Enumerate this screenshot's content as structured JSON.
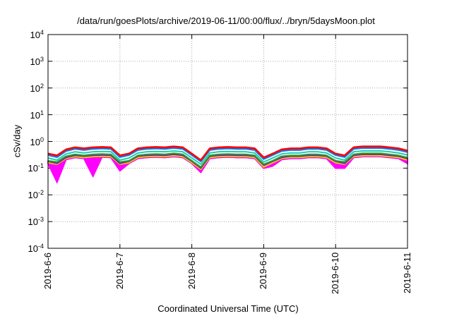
{
  "chart_data": {
    "type": "line",
    "title": "/data/run/goesPlots/archive/2019-06-11/00:00/flux/../bryn/5daysMoon.plot",
    "xlabel": "Coordinated Universal Time (UTC)",
    "ylabel": "cSv/day",
    "yscale": "log",
    "ylim": [
      0.0001,
      10000
    ],
    "xlim": [
      0,
      5
    ],
    "x_unit": "days since 2019-6-6 00:00",
    "grid": true,
    "y_ticks": [
      {
        "value": 10000,
        "base": "10",
        "exp": "4"
      },
      {
        "value": 1000,
        "base": "10",
        "exp": "3"
      },
      {
        "value": 100,
        "base": "10",
        "exp": "2"
      },
      {
        "value": 10,
        "base": "10",
        "exp": "1"
      },
      {
        "value": 1,
        "base": "10",
        "exp": "0"
      },
      {
        "value": 0.1,
        "base": "10",
        "exp": "-1"
      },
      {
        "value": 0.01,
        "base": "10",
        "exp": "-2"
      },
      {
        "value": 0.001,
        "base": "10",
        "exp": "-3"
      },
      {
        "value": 0.0001,
        "base": "10",
        "exp": "-4"
      }
    ],
    "x_ticks": [
      {
        "value": 0,
        "label": "2019-6-6"
      },
      {
        "value": 1,
        "label": "2019-6-7"
      },
      {
        "value": 2,
        "label": "2019-6-8"
      },
      {
        "value": 3,
        "label": "2019-6-9"
      },
      {
        "value": 4,
        "label": "2019-6-10"
      },
      {
        "value": 5,
        "label": "2019-6-11"
      }
    ],
    "x_step": 0.125,
    "series": [
      {
        "name": "red",
        "color": "#ff0000",
        "values": [
          0.35,
          0.3,
          0.5,
          0.6,
          0.55,
          0.6,
          0.62,
          0.6,
          0.3,
          0.35,
          0.55,
          0.6,
          0.62,
          0.6,
          0.65,
          0.6,
          0.35,
          0.2,
          0.55,
          0.6,
          0.62,
          0.6,
          0.6,
          0.55,
          0.25,
          0.35,
          0.5,
          0.55,
          0.55,
          0.6,
          0.6,
          0.55,
          0.35,
          0.3,
          0.6,
          0.65,
          0.65,
          0.65,
          0.6,
          0.55,
          0.45
        ]
      },
      {
        "name": "blue",
        "color": "#1f6fe0",
        "values": [
          0.31,
          0.26,
          0.44,
          0.53,
          0.48,
          0.53,
          0.55,
          0.53,
          0.26,
          0.31,
          0.48,
          0.53,
          0.55,
          0.53,
          0.57,
          0.53,
          0.31,
          0.18,
          0.48,
          0.53,
          0.55,
          0.53,
          0.53,
          0.48,
          0.22,
          0.31,
          0.44,
          0.48,
          0.48,
          0.53,
          0.53,
          0.48,
          0.31,
          0.26,
          0.53,
          0.57,
          0.57,
          0.57,
          0.53,
          0.48,
          0.4
        ]
      },
      {
        "name": "cyan",
        "color": "#19d0b0",
        "values": [
          0.24,
          0.2,
          0.34,
          0.41,
          0.37,
          0.41,
          0.42,
          0.41,
          0.2,
          0.24,
          0.37,
          0.41,
          0.42,
          0.41,
          0.44,
          0.41,
          0.24,
          0.14,
          0.37,
          0.41,
          0.42,
          0.41,
          0.41,
          0.37,
          0.17,
          0.24,
          0.34,
          0.37,
          0.37,
          0.41,
          0.41,
          0.37,
          0.24,
          0.2,
          0.41,
          0.44,
          0.44,
          0.44,
          0.41,
          0.37,
          0.31
        ]
      },
      {
        "name": "green",
        "color": "#2e9a3a",
        "values": [
          0.19,
          0.17,
          0.28,
          0.33,
          0.3,
          0.33,
          0.34,
          0.33,
          0.17,
          0.19,
          0.3,
          0.33,
          0.34,
          0.33,
          0.36,
          0.33,
          0.19,
          0.11,
          0.3,
          0.33,
          0.34,
          0.33,
          0.33,
          0.3,
          0.14,
          0.19,
          0.28,
          0.3,
          0.3,
          0.33,
          0.33,
          0.3,
          0.19,
          0.17,
          0.33,
          0.36,
          0.36,
          0.36,
          0.33,
          0.3,
          0.25
        ]
      },
      {
        "name": "purple",
        "color": "#6a2a8a",
        "values": [
          0.18,
          0.15,
          0.25,
          0.3,
          0.28,
          0.3,
          0.31,
          0.3,
          0.15,
          0.18,
          0.28,
          0.3,
          0.31,
          0.3,
          0.33,
          0.3,
          0.18,
          0.1,
          0.28,
          0.3,
          0.31,
          0.3,
          0.3,
          0.28,
          0.13,
          0.18,
          0.25,
          0.28,
          0.28,
          0.3,
          0.3,
          0.28,
          0.18,
          0.15,
          0.3,
          0.33,
          0.33,
          0.33,
          0.3,
          0.28,
          0.23
        ]
      },
      {
        "name": "yellow",
        "color": "#e8d000",
        "values": [
          0.16,
          0.14,
          0.23,
          0.27,
          0.25,
          0.27,
          0.28,
          0.27,
          0.14,
          0.16,
          0.25,
          0.27,
          0.28,
          0.27,
          0.29,
          0.27,
          0.16,
          0.09,
          0.25,
          0.27,
          0.28,
          0.27,
          0.27,
          0.25,
          0.11,
          0.16,
          0.23,
          0.25,
          0.25,
          0.27,
          0.27,
          0.25,
          0.16,
          0.14,
          0.27,
          0.29,
          0.29,
          0.29,
          0.27,
          0.25,
          0.2
        ]
      },
      {
        "name": "magenta",
        "color": "#ff00ff",
        "values": [
          0.15,
          0.03,
          0.21,
          0.25,
          0.23,
          0.05,
          0.26,
          0.25,
          0.08,
          0.15,
          0.23,
          0.25,
          0.26,
          0.25,
          0.27,
          0.25,
          0.15,
          0.07,
          0.23,
          0.25,
          0.26,
          0.25,
          0.25,
          0.23,
          0.1,
          0.12,
          0.21,
          0.23,
          0.23,
          0.25,
          0.25,
          0.23,
          0.1,
          0.1,
          0.25,
          0.27,
          0.27,
          0.27,
          0.25,
          0.23,
          0.15
        ]
      }
    ]
  }
}
